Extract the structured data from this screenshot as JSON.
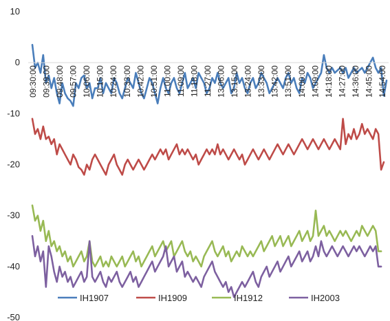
{
  "chart_data": {
    "type": "line",
    "ylim": [
      -50,
      10
    ],
    "y_ticks": [
      10,
      0,
      -10,
      -20,
      -30,
      -40,
      -50
    ],
    "y_tick_labels": [
      "10",
      "0",
      "-10",
      "-20",
      "-30",
      "-40",
      "-50"
    ],
    "grid": false,
    "legend_position": "bottom",
    "x_tick_labels": [
      "09:30:00",
      "09:39:00",
      "09:48:00",
      "09:57:00",
      "10:06:00",
      "10:15:00",
      "10:24:00",
      "10:33:00",
      "10:42:00",
      "10:51:00",
      "11:00:00",
      "11:09:00",
      "11:18:00",
      "11:27:00",
      "13:06:00",
      "13:15:00",
      "13:24:00",
      "13:33:00",
      "13:42:00",
      "13:51:00",
      "14:00:00",
      "14:09:00",
      "14:18:00",
      "14:27:00",
      "14:36:00",
      "14:45:00",
      "14:54:00"
    ],
    "series": [
      {
        "name": "IH1907",
        "color": "#4a7ebb",
        "values": [
          3.5,
          -1,
          0,
          -2,
          1.5,
          -4,
          -2.5,
          -5,
          -3,
          -6,
          -8,
          -4,
          -6,
          -7,
          -7.5,
          -8.5,
          -4,
          -5,
          -3,
          -2.5,
          -5,
          -4,
          -7,
          -5,
          -5,
          -3,
          -6,
          -4,
          -5,
          -6,
          -3,
          -4,
          -6,
          -7,
          -5,
          -3,
          -4,
          -5,
          -2,
          -4,
          -6,
          -7,
          -5,
          -3,
          -4,
          -6,
          -8,
          -5,
          -3,
          -5,
          -6,
          -4,
          -3,
          -5,
          -6,
          -4,
          -2,
          -5,
          -4,
          -3,
          -5,
          -2,
          -3,
          -4,
          -6,
          -5,
          -3,
          -4,
          -2,
          -4,
          -5,
          -4,
          -3,
          -6,
          -5,
          -2,
          -4,
          -3,
          -5,
          -6,
          -4,
          -3,
          -5,
          -4,
          -2,
          -3,
          -4,
          -6,
          -5,
          -4,
          -3,
          -4,
          -5,
          -3,
          -2,
          -4,
          -3,
          -5,
          -6,
          -3,
          -4,
          -2,
          -3,
          -5,
          -4,
          -3,
          -2,
          1.5,
          -1,
          -2,
          -1,
          -2,
          -1.5,
          -1,
          -2,
          -1,
          -3,
          -2,
          -1,
          -2,
          -1.5,
          -1,
          -2,
          -1,
          0,
          1,
          -1,
          -2,
          -1,
          -6.5,
          -3.5
        ]
      },
      {
        "name": "IH1909",
        "color": "#be4b48",
        "values": [
          -11,
          -14,
          -13,
          -15,
          -12.5,
          -15,
          -14.5,
          -16,
          -15,
          -18,
          -16,
          -17,
          -18,
          -19,
          -20,
          -18,
          -19,
          -20.5,
          -21,
          -22,
          -20,
          -21,
          -19,
          -18,
          -19,
          -20,
          -21,
          -22,
          -20,
          -19,
          -18,
          -20,
          -21,
          -22,
          -20,
          -19,
          -20,
          -21,
          -20,
          -19,
          -20,
          -21,
          -20,
          -19,
          -18,
          -19,
          -18,
          -17,
          -18,
          -17,
          -19,
          -18,
          -17,
          -16,
          -18,
          -17,
          -18,
          -17,
          -18,
          -19,
          -18,
          -20,
          -19,
          -18,
          -17,
          -18,
          -17,
          -18,
          -16,
          -18,
          -17,
          -18,
          -19,
          -18,
          -17,
          -18,
          -19,
          -18,
          -20,
          -19,
          -18,
          -17,
          -18,
          -19,
          -18,
          -17,
          -18,
          -19,
          -18,
          -17,
          -16,
          -17,
          -18,
          -17,
          -16,
          -17,
          -18,
          -17,
          -16,
          -15,
          -16,
          -17,
          -16,
          -15,
          -16,
          -17,
          -16,
          -15,
          -16,
          -17,
          -16,
          -15,
          -16,
          -17,
          -11,
          -16,
          -14,
          -15,
          -13,
          -15,
          -14,
          -12,
          -14,
          -13,
          -14,
          -15,
          -13,
          -14,
          -21,
          -19.5
        ]
      },
      {
        "name": "IH1912",
        "color": "#98b954",
        "values": [
          -28,
          -31,
          -30,
          -33,
          -31,
          -35,
          -33,
          -36,
          -35,
          -37,
          -36,
          -38,
          -37,
          -39,
          -38,
          -40,
          -39,
          -38,
          -37,
          -39,
          -38,
          -35,
          -39,
          -40,
          -39,
          -38,
          -40,
          -39,
          -40,
          -38,
          -39,
          -40,
          -39,
          -38,
          -40,
          -39,
          -38,
          -37,
          -39,
          -38,
          -40,
          -39,
          -38,
          -37,
          -36,
          -38,
          -37,
          -36,
          -35,
          -37,
          -36,
          -35,
          -38,
          -37,
          -36,
          -35,
          -37,
          -38,
          -37,
          -39,
          -38,
          -39,
          -40,
          -38,
          -37,
          -36,
          -35,
          -37,
          -38,
          -37,
          -36,
          -38,
          -37,
          -39,
          -38,
          -37,
          -38,
          -36,
          -37,
          -38,
          -37,
          -38,
          -37,
          -36,
          -35,
          -37,
          -36,
          -35,
          -34,
          -36,
          -35,
          -34,
          -36,
          -35,
          -34,
          -36,
          -35,
          -34,
          -33,
          -35,
          -34,
          -33,
          -35,
          -34,
          -29,
          -34,
          -33,
          -32,
          -34,
          -33,
          -34,
          -35,
          -34,
          -33,
          -34,
          -33,
          -34,
          -35,
          -34,
          -33,
          -34,
          -32,
          -33,
          -34,
          -33,
          -32,
          -33,
          -37,
          -37
        ]
      },
      {
        "name": "IH2003",
        "color": "#7d60a0",
        "values": [
          -34,
          -38,
          -36,
          -39,
          -37,
          -44,
          -36,
          -38,
          -41,
          -43,
          -40,
          -42,
          -41,
          -43,
          -42,
          -44,
          -43,
          -42,
          -41,
          -43,
          -42,
          -35,
          -42,
          -43,
          -42,
          -41,
          -43,
          -44,
          -42,
          -43,
          -42,
          -41,
          -43,
          -44,
          -43,
          -42,
          -41,
          -43,
          -42,
          -44,
          -43,
          -42,
          -41,
          -40,
          -39,
          -41,
          -40,
          -39,
          -38,
          -36,
          -40,
          -39,
          -38,
          -41,
          -40,
          -39,
          -42,
          -41,
          -42,
          -43,
          -42,
          -43,
          -44,
          -42,
          -41,
          -40,
          -39,
          -41,
          -42,
          -43,
          -44,
          -43,
          -45,
          -44,
          -46,
          -45,
          -44,
          -43,
          -44,
          -43,
          -42,
          -41,
          -43,
          -44,
          -42,
          -41,
          -40,
          -42,
          -41,
          -40,
          -39,
          -41,
          -40,
          -39,
          -38,
          -40,
          -39,
          -38,
          -37,
          -39,
          -38,
          -37,
          -39,
          -38,
          -36,
          -38,
          -35,
          -37,
          -38,
          -37,
          -36,
          -37,
          -38,
          -37,
          -36,
          -37,
          -38,
          -37,
          -36,
          -37,
          -36,
          -37,
          -38,
          -37,
          -36,
          -37,
          -36,
          -40,
          -40
        ]
      }
    ]
  }
}
